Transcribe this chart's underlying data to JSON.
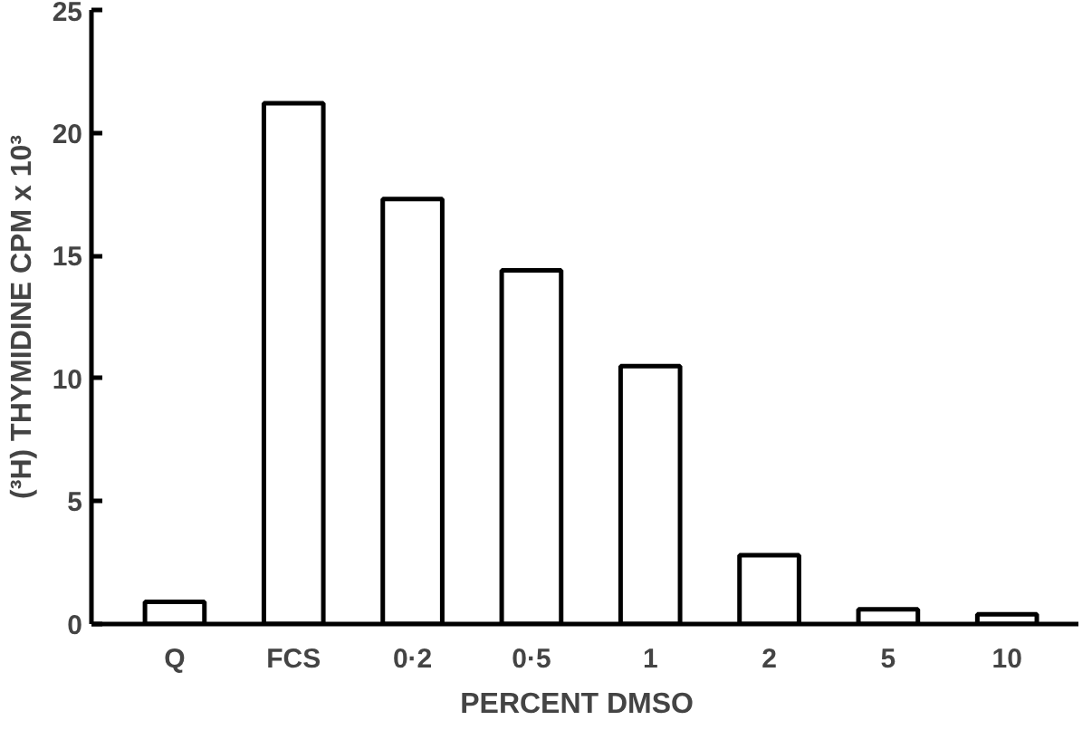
{
  "chart_data": {
    "type": "bar",
    "xlabel": "PERCENT   DMSO",
    "ylabel": "(³H) THYMIDINE CPM x 10³",
    "categories": [
      "Q",
      "FCS",
      "0·2",
      "0·5",
      "1",
      "2",
      "5",
      "10"
    ],
    "values": [
      0.9,
      21.2,
      17.3,
      14.4,
      10.5,
      2.8,
      0.6,
      0.4
    ],
    "color": "#ffffff",
    "ylim": [
      0,
      25
    ],
    "yticks": [
      0,
      5,
      10,
      15,
      20,
      25
    ],
    "grid": false
  }
}
